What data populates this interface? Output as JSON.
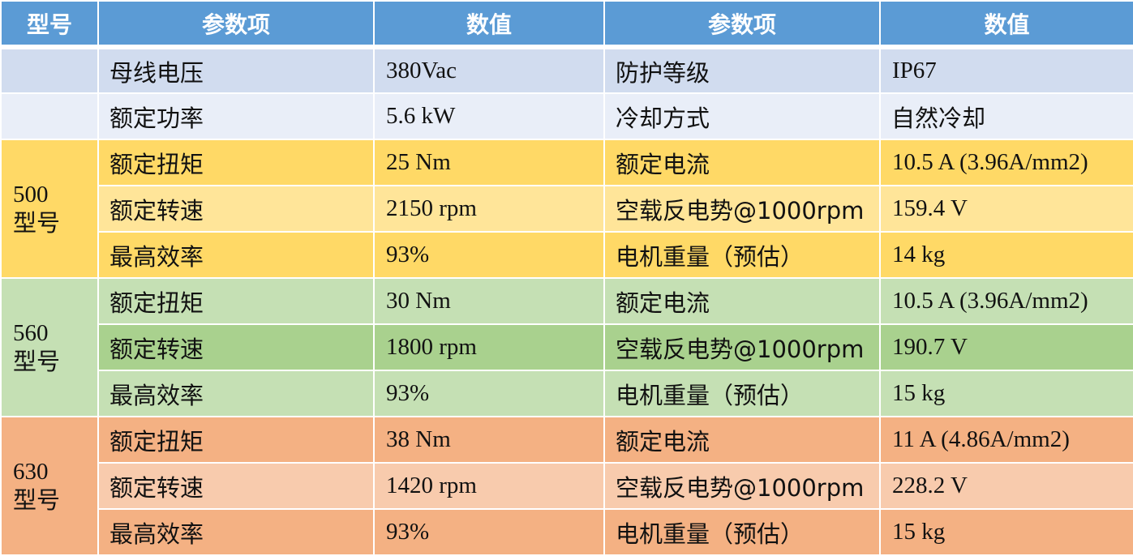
{
  "header": {
    "col_model": "型号",
    "col_param_1": "参数项",
    "col_value_1": "数值",
    "col_param_2": "参数项",
    "col_value_2": "数值"
  },
  "general": [
    {
      "param_1": "母线电压",
      "value_1": "380Vac",
      "param_2": "防护等级",
      "value_2": "IP67"
    },
    {
      "param_1": "额定功率",
      "value_1": "5.6 kW",
      "param_2": "冷却方式",
      "value_2": "自然冷却"
    }
  ],
  "models": [
    {
      "number": "500",
      "word": "型号",
      "color": "#ffd966",
      "alt_color": "#ffe599",
      "rows": [
        {
          "param_1": "额定扭矩",
          "value_1": "25 Nm",
          "param_2": "额定电流",
          "value_2": "10.5 A (3.96A/mm2)"
        },
        {
          "param_1": "额定转速",
          "value_1": "2150 rpm",
          "param_2": "空载反电势@1000rpm",
          "value_2": "159.4 V"
        },
        {
          "param_1": "最高效率",
          "value_1": "93%",
          "param_2": "电机重量（预估）",
          "value_2": "14 kg"
        }
      ]
    },
    {
      "number": "560",
      "word": "型号",
      "color": "#c5e0b4",
      "alt_color": "#a9d18e",
      "rows": [
        {
          "param_1": "额定扭矩",
          "value_1": "30 Nm",
          "param_2": "额定电流",
          "value_2": "10.5 A (3.96A/mm2)"
        },
        {
          "param_1": "额定转速",
          "value_1": "1800 rpm",
          "param_2": "空载反电势@1000rpm",
          "value_2": "190.7 V"
        },
        {
          "param_1": "最高效率",
          "value_1": "93%",
          "param_2": "电机重量（预估）",
          "value_2": "15 kg"
        }
      ]
    },
    {
      "number": "630",
      "word": "型号",
      "color": "#f4b183",
      "alt_color": "#f8cbad",
      "rows": [
        {
          "param_1": "额定扭矩",
          "value_1": "38 Nm",
          "param_2": "额定电流",
          "value_2": "11 A (4.86A/mm2)"
        },
        {
          "param_1": "额定转速",
          "value_1": "1420 rpm",
          "param_2": "空载反电势@1000rpm",
          "value_2": "228.2 V"
        },
        {
          "param_1": "最高效率",
          "value_1": "93%",
          "param_2": "电机重量（预估）",
          "value_2": "15 kg"
        }
      ]
    }
  ],
  "colors": {
    "header_bg": "#5b9bd5",
    "header_text": "#ffffff",
    "general_a": "#d1dcef",
    "general_b": "#e9eef8"
  }
}
